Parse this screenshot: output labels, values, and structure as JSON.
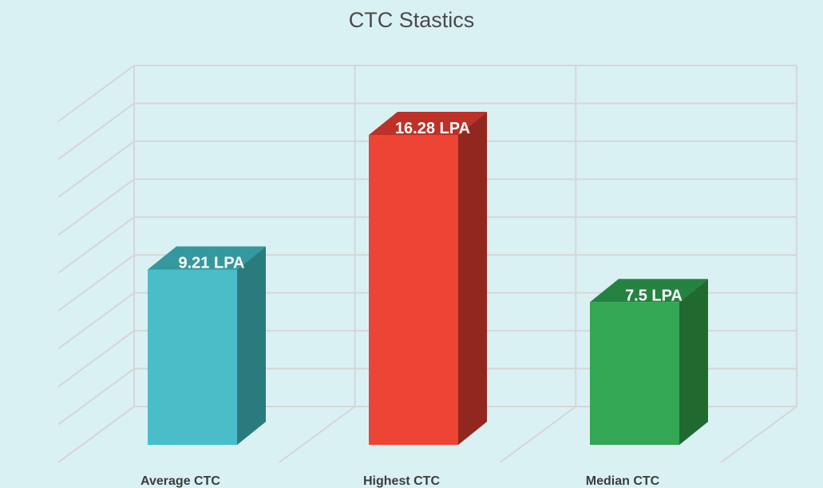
{
  "chart_data": {
    "type": "bar",
    "title": "CTC Stastics",
    "categories": [
      "Average CTC",
      "Highest CTC",
      "Median CTC"
    ],
    "values": [
      9.21,
      16.28,
      7.5
    ],
    "data_labels": [
      "9.21 LPA",
      "16.28 LPA",
      "7.5 LPA"
    ],
    "ylim": [
      0,
      18
    ],
    "grid": true,
    "three_d": true,
    "colors": [
      {
        "front": "#49bec9",
        "side": "#2a7b7d",
        "top": "#35989f"
      },
      {
        "front": "#ec4435",
        "side": "#922720",
        "top": "#bd3128"
      },
      {
        "front": "#33a753",
        "side": "#20692f",
        "top": "#268241"
      }
    ]
  }
}
